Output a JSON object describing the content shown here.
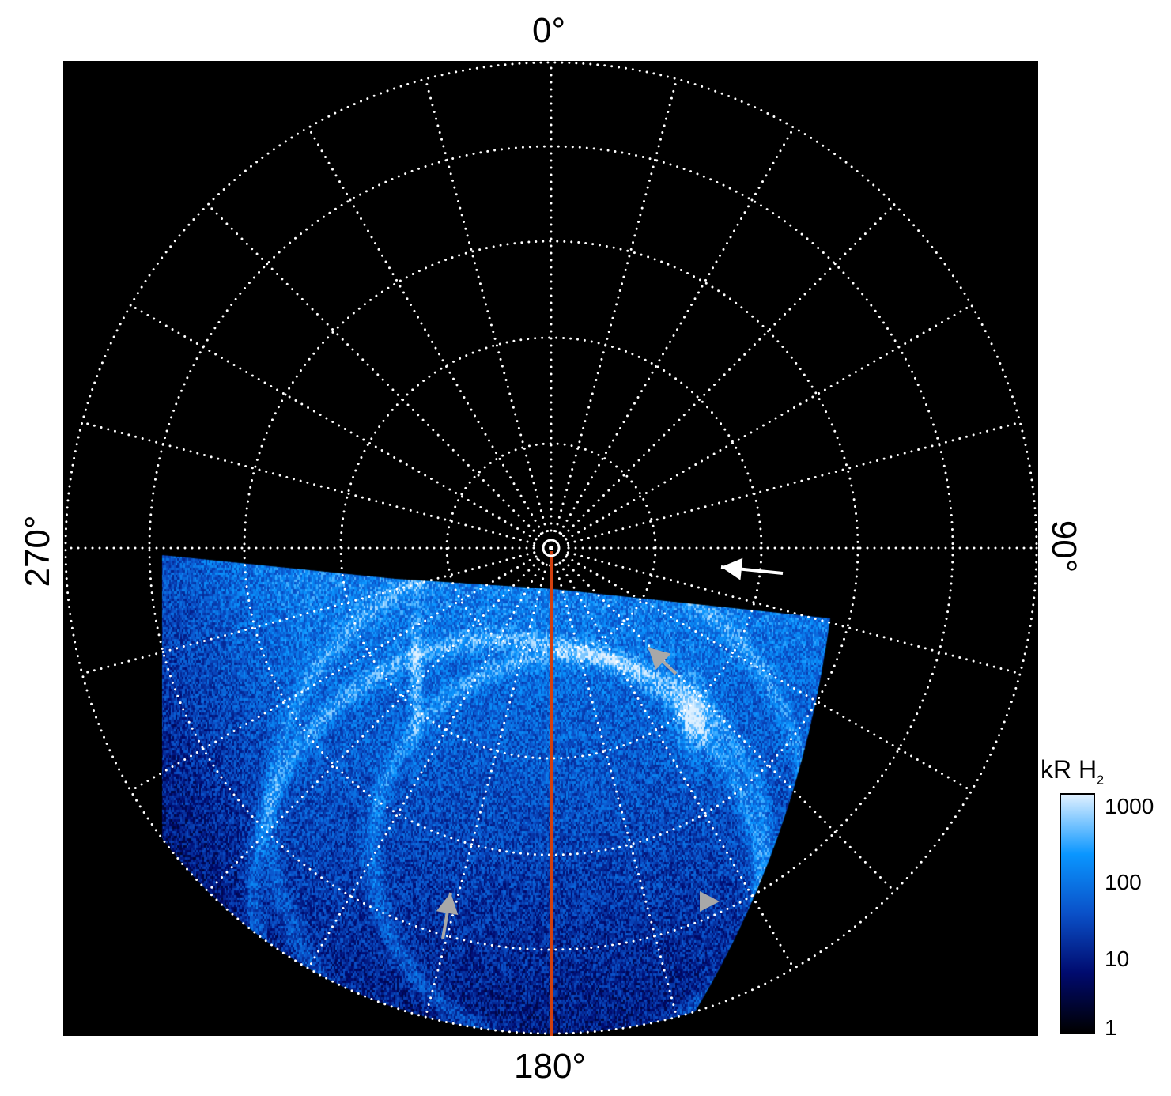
{
  "axes": {
    "top_label": "0°",
    "bottom_label": "180°",
    "left_label": "270°",
    "right_label": "90°"
  },
  "colorbar": {
    "title": "kR H",
    "title_subscript": "2",
    "ticks": [
      "1000",
      "100",
      "10",
      "1"
    ],
    "scale": "log",
    "range": [
      1,
      1000
    ],
    "colors": [
      "#000000",
      "#000a6e",
      "#0a50c8",
      "#0a96ff",
      "#dff0ff"
    ]
  },
  "grid": {
    "style": "dotted",
    "color": "#ffffff",
    "meridian_spacing_deg": 15
  },
  "annotations": {
    "meridian_line_color": "#d2400e",
    "arrow_white_color": "#ffffff",
    "arrow_grey_color": "#a8a8a8"
  }
}
